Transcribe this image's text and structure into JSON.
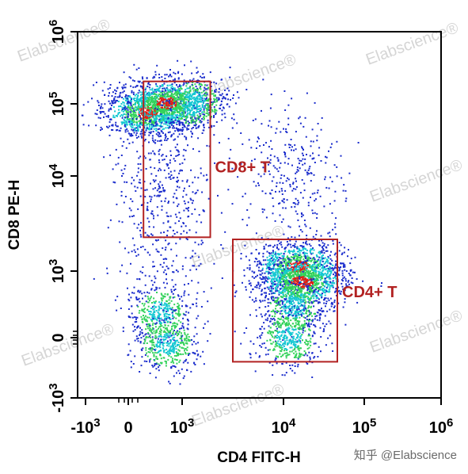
{
  "chart_data": {
    "type": "scatter",
    "title": "",
    "xlabel": "CD4 FITC-H",
    "ylabel": "CD8 PE-H",
    "x_scale": "biexponential",
    "y_scale": "biexponential",
    "xlim": [
      -1000,
      1000000
    ],
    "ylim": [
      -1000,
      1000000
    ],
    "grid": false,
    "x_ticks": [
      {
        "value": -1000,
        "base": "-10",
        "exp": "3"
      },
      {
        "value": 0,
        "base": "0",
        "exp": ""
      },
      {
        "value": 1000,
        "base": "10",
        "exp": "3"
      },
      {
        "value": 10000,
        "base": "10",
        "exp": "4"
      },
      {
        "value": 100000,
        "base": "10",
        "exp": "5"
      },
      {
        "value": 1000000,
        "base": "10",
        "exp": "6"
      }
    ],
    "y_ticks": [
      {
        "value": -1000,
        "base": "-10",
        "exp": "3"
      },
      {
        "value": 0,
        "base": "0",
        "exp": ""
      },
      {
        "value": 1000,
        "base": "10",
        "exp": "3"
      },
      {
        "value": 10000,
        "base": "10",
        "exp": "4"
      },
      {
        "value": 100000,
        "base": "10",
        "exp": "5"
      },
      {
        "value": 1000000,
        "base": "10",
        "exp": "6"
      }
    ],
    "populations": [
      {
        "x": 70,
        "y": 90000,
        "density": "high"
      },
      {
        "x": 500,
        "y": 120000,
        "density": "high"
      },
      {
        "x": 2000,
        "y": 110000,
        "density": "medium"
      },
      {
        "x": 200,
        "y": 30000,
        "density": "low"
      },
      {
        "x": 500,
        "y": 8000,
        "density": "low"
      },
      {
        "x": 400,
        "y": 3000,
        "density": "low"
      },
      {
        "x": 300,
        "y": 200,
        "density": "medium"
      },
      {
        "x": 500,
        "y": -100,
        "density": "medium"
      },
      {
        "x": 25000,
        "y": 1500,
        "density": "high"
      },
      {
        "x": 30000,
        "y": 800,
        "density": "high"
      },
      {
        "x": 20000,
        "y": 300,
        "density": "medium"
      },
      {
        "x": 15000,
        "y": 0,
        "density": "medium"
      },
      {
        "x": 10000,
        "y": 30000,
        "density": "low"
      },
      {
        "x": 30000,
        "y": 8000,
        "density": "low"
      }
    ],
    "gates": [
      {
        "name": "CD8+ T",
        "x_range": [
          60,
          3500
        ],
        "y_range": [
          4200,
          380000
        ]
      },
      {
        "name": "CD4+ T",
        "x_range": [
          5500,
          70000
        ],
        "y_range": [
          -400,
          4000
        ]
      }
    ]
  },
  "watermarks": [
    "Elabscience®",
    "Elabscience®",
    "Elabscience®",
    "Elabscience®",
    "Elabscience®",
    "Elabscience®",
    "Elabscience®",
    "Elabscience®"
  ],
  "credit": "知乎 @Elabscience",
  "colors": {
    "low_density": "#1a2ccc",
    "medium_density": "#14c8d2",
    "high_density": "#32d25a",
    "peak_density": "#e21e14",
    "gate": "#b22222"
  }
}
